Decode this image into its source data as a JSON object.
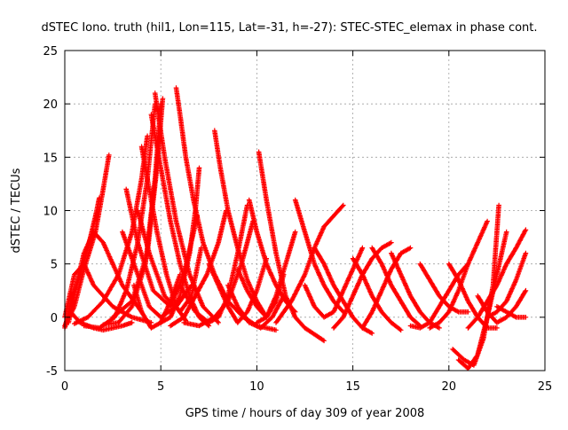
{
  "chart_data": {
    "type": "scatter",
    "title": "dSTEC Iono. truth (hil1, Lon=115, Lat=-31, h=-27): STEC-STEC_elemax in phase cont.",
    "xlabel": "GPS time / hours of day 309 of year 2008",
    "ylabel": "dSTEC  / TECUs",
    "xlim": [
      0,
      25
    ],
    "ylim": [
      -5,
      25
    ],
    "xticks": [
      0,
      5,
      10,
      15,
      20,
      25
    ],
    "yticks": [
      -5,
      0,
      5,
      10,
      15,
      20,
      25
    ],
    "grid": true,
    "marker": "+",
    "color": "#ff0000",
    "arcs": [
      {
        "x": [
          0.0,
          0.4,
          0.8,
          1.2,
          1.6,
          1.8
        ],
        "y": [
          -1.0,
          2.0,
          4.0,
          6.5,
          9.5,
          11.2
        ]
      },
      {
        "x": [
          0.0,
          0.5,
          1.0,
          1.5,
          2.5,
          3.5,
          4.5
        ],
        "y": [
          0.0,
          4.0,
          5.0,
          3.0,
          1.0,
          0.0,
          -0.5
        ]
      },
      {
        "x": [
          0.0,
          0.5,
          1.0,
          1.6,
          2.0,
          2.3
        ],
        "y": [
          -0.8,
          1.0,
          4.5,
          8.0,
          12.0,
          15.2
        ]
      },
      {
        "x": [
          0.2,
          0.6,
          1.0,
          1.5,
          2.0,
          3.0,
          4.0
        ],
        "y": [
          -0.5,
          3.0,
          6.0,
          8.0,
          7.0,
          3.0,
          0.5
        ]
      },
      {
        "x": [
          0.3,
          0.8,
          1.5,
          2.0,
          2.5,
          3.0,
          3.5
        ],
        "y": [
          0.5,
          -0.5,
          -1.0,
          -1.2,
          -1.0,
          -0.8,
          -0.5
        ]
      },
      {
        "x": [
          0.5,
          1.2,
          2.0,
          2.8,
          3.5,
          4.0,
          4.3
        ],
        "y": [
          -0.6,
          0.0,
          1.5,
          4.0,
          8.0,
          13.0,
          17.0
        ]
      },
      {
        "x": [
          1.0,
          1.8,
          2.6,
          3.2,
          3.8,
          4.3,
          4.7
        ],
        "y": [
          -0.8,
          -1.0,
          0.0,
          2.5,
          7.0,
          13.0,
          20.0
        ]
      },
      {
        "x": [
          2.0,
          2.8,
          3.5,
          4.2,
          4.7,
          5.0
        ],
        "y": [
          -0.7,
          -0.5,
          1.0,
          5.0,
          13.0,
          20.0
        ]
      },
      {
        "x": [
          2.5,
          3.5,
          4.3,
          4.8,
          5.1
        ],
        "y": [
          0.0,
          1.5,
          6.0,
          14.0,
          20.5
        ]
      },
      {
        "x": [
          4.0,
          4.4,
          4.8,
          5.3,
          5.8,
          6.3
        ],
        "y": [
          16.0,
          12.0,
          8.0,
          4.0,
          1.0,
          -0.3
        ]
      },
      {
        "x": [
          4.5,
          5.0,
          5.5,
          6.0,
          6.5,
          7.0,
          7.5
        ],
        "y": [
          19.0,
          14.0,
          9.0,
          5.0,
          2.0,
          0.0,
          -0.8
        ]
      },
      {
        "x": [
          4.7,
          5.2,
          5.8,
          6.5,
          7.2,
          8.0
        ],
        "y": [
          21.0,
          15.0,
          9.0,
          4.0,
          1.0,
          -0.5
        ]
      },
      {
        "x": [
          3.6,
          4.0,
          4.5,
          5.0,
          5.5,
          6.0
        ],
        "y": [
          3.0,
          0.5,
          -1.0,
          -0.5,
          1.5,
          4.0
        ]
      },
      {
        "x": [
          3.0,
          3.8,
          4.4,
          5.0,
          5.8,
          6.6
        ],
        "y": [
          8.0,
          4.0,
          1.0,
          0.0,
          1.0,
          3.0
        ]
      },
      {
        "x": [
          3.8,
          4.4,
          5.2,
          6.0,
          6.6,
          7.1
        ],
        "y": [
          10.0,
          6.0,
          2.0,
          0.5,
          2.0,
          6.5
        ]
      },
      {
        "x": [
          3.2,
          3.8,
          4.6,
          5.5,
          6.2,
          6.9
        ],
        "y": [
          12.0,
          7.0,
          2.5,
          1.0,
          4.0,
          9.5
        ]
      },
      {
        "x": [
          5.0,
          5.5,
          6.0,
          6.5,
          6.8,
          7.0
        ],
        "y": [
          -0.5,
          0.0,
          2.0,
          6.0,
          10.0,
          14.0
        ]
      },
      {
        "x": [
          5.5,
          6.2,
          6.8,
          7.4,
          8.0,
          8.4
        ],
        "y": [
          -0.8,
          0.0,
          2.0,
          4.0,
          7.0,
          10.0
        ]
      },
      {
        "x": [
          5.8,
          6.0,
          6.3,
          6.7,
          7.2,
          7.8,
          8.5,
          9.3,
          10.0,
          11.0
        ],
        "y": [
          21.5,
          19.0,
          15.0,
          11.0,
          7.0,
          4.0,
          1.5,
          0.0,
          -0.8,
          -1.2
        ]
      },
      {
        "x": [
          6.0,
          6.8,
          7.5,
          8.0,
          8.5,
          9.0,
          9.5
        ],
        "y": [
          3.0,
          0.5,
          -0.5,
          0.0,
          2.0,
          6.0,
          10.5
        ]
      },
      {
        "x": [
          6.2,
          7.0,
          7.8,
          8.5,
          9.2,
          9.8
        ],
        "y": [
          -0.5,
          -0.8,
          0.0,
          1.5,
          5.0,
          9.0
        ]
      },
      {
        "x": [
          7.8,
          8.1,
          8.5,
          9.0,
          9.5,
          10.0,
          10.5
        ],
        "y": [
          17.5,
          14.0,
          10.0,
          6.5,
          3.5,
          1.5,
          0.0
        ]
      },
      {
        "x": [
          7.5,
          8.0,
          8.5,
          9.0,
          9.5,
          10.0,
          10.5
        ],
        "y": [
          5.0,
          3.0,
          1.0,
          -0.5,
          0.5,
          2.5,
          5.5
        ]
      },
      {
        "x": [
          8.5,
          9.0,
          9.6,
          10.2,
          10.8,
          11.4
        ],
        "y": [
          3.0,
          1.0,
          -0.5,
          -1.0,
          0.0,
          2.0
        ]
      },
      {
        "x": [
          9.0,
          9.5,
          10.0,
          10.5,
          11.0,
          11.4
        ],
        "y": [
          4.5,
          2.5,
          1.0,
          0.0,
          1.5,
          4.0
        ]
      },
      {
        "x": [
          9.6,
          10.0,
          10.5,
          11.0,
          11.5,
          12.0
        ],
        "y": [
          11.0,
          8.0,
          5.0,
          3.0,
          1.5,
          0.5
        ]
      },
      {
        "x": [
          10.1,
          10.5,
          11.0,
          11.5,
          12.0,
          12.5,
          13.5
        ],
        "y": [
          15.5,
          11.0,
          6.0,
          2.0,
          0.0,
          -1.0,
          -2.2
        ]
      },
      {
        "x": [
          10.0,
          10.5,
          11.0,
          11.5,
          12.0
        ],
        "y": [
          -0.5,
          0.0,
          2.0,
          5.0,
          8.0
        ]
      },
      {
        "x": [
          11.0,
          11.8,
          12.5,
          13.0,
          13.5,
          14.0,
          14.5
        ],
        "y": [
          -0.5,
          1.5,
          4.0,
          6.5,
          8.5,
          9.5,
          10.5
        ]
      },
      {
        "x": [
          12.0,
          12.5,
          13.0,
          13.5,
          14.0,
          14.5
        ],
        "y": [
          11.0,
          8.0,
          5.0,
          3.0,
          1.5,
          0.5
        ]
      },
      {
        "x": [
          12.5,
          13.0,
          13.5,
          14.0,
          14.5,
          15.0,
          15.5
        ],
        "y": [
          3.0,
          1.0,
          0.0,
          0.5,
          2.5,
          4.5,
          6.5
        ]
      },
      {
        "x": [
          13.0,
          13.5,
          14.0,
          14.5,
          15.0,
          15.5,
          16.0
        ],
        "y": [
          6.5,
          5.0,
          3.0,
          1.5,
          0.0,
          -1.0,
          -1.5
        ]
      },
      {
        "x": [
          14.0,
          14.5,
          15.0,
          15.5,
          16.0,
          16.5,
          17.0
        ],
        "y": [
          -1.0,
          0.0,
          2.0,
          4.0,
          5.5,
          6.5,
          7.0
        ]
      },
      {
        "x": [
          15.0,
          15.5,
          16.0,
          16.5,
          17.0,
          17.5
        ],
        "y": [
          5.5,
          4.0,
          2.0,
          0.5,
          -0.5,
          -1.2
        ]
      },
      {
        "x": [
          15.5,
          16.0,
          16.5,
          17.0,
          17.5,
          18.0
        ],
        "y": [
          -1.0,
          0.5,
          2.5,
          4.5,
          6.0,
          6.5
        ]
      },
      {
        "x": [
          16.0,
          16.5,
          17.0,
          17.5,
          18.0,
          18.5
        ],
        "y": [
          6.5,
          5.0,
          3.0,
          1.5,
          0.0,
          -0.8
        ]
      },
      {
        "x": [
          17.0,
          17.5,
          18.0,
          18.5,
          19.0,
          19.5
        ],
        "y": [
          6.0,
          4.0,
          2.0,
          0.5,
          -0.5,
          -1.0
        ]
      },
      {
        "x": [
          18.5,
          19.0,
          19.5,
          20.0,
          20.5,
          21.0
        ],
        "y": [
          5.0,
          3.5,
          2.0,
          1.0,
          0.5,
          0.5
        ]
      },
      {
        "x": [
          18.0,
          18.5,
          19.0,
          19.5,
          20.0,
          20.5,
          21.0
        ],
        "y": [
          -0.8,
          -1.0,
          -0.5,
          1.0,
          2.5,
          4.0,
          5.0
        ]
      },
      {
        "x": [
          19.0,
          19.5,
          20.0,
          20.5,
          21.0,
          21.5,
          22.0
        ],
        "y": [
          -1.0,
          -0.5,
          0.5,
          2.5,
          5.0,
          7.0,
          9.0
        ]
      },
      {
        "x": [
          20.0,
          20.5,
          21.0,
          21.5,
          22.0,
          22.5
        ],
        "y": [
          5.0,
          3.5,
          1.5,
          0.0,
          -1.0,
          -1.0
        ]
      },
      {
        "x": [
          20.2,
          20.8,
          21.3,
          21.8,
          22.3,
          22.6
        ],
        "y": [
          -3.0,
          -4.0,
          -4.5,
          -2.0,
          3.0,
          10.5
        ]
      },
      {
        "x": [
          20.5,
          21.0,
          21.5,
          22.0,
          22.5,
          23.0
        ],
        "y": [
          -4.0,
          -4.8,
          -3.5,
          0.0,
          4.0,
          8.0
        ]
      },
      {
        "x": [
          21.0,
          21.5,
          22.0,
          22.5,
          23.0,
          23.5,
          24.0
        ],
        "y": [
          -1.0,
          0.0,
          1.5,
          3.0,
          5.0,
          6.5,
          8.2
        ]
      },
      {
        "x": [
          21.5,
          22.0,
          22.5,
          23.0,
          23.5,
          24.0
        ],
        "y": [
          2.0,
          0.5,
          -0.5,
          0.0,
          1.0,
          2.5
        ]
      },
      {
        "x": [
          22.0,
          22.5,
          23.0,
          23.5,
          24.0
        ],
        "y": [
          0.0,
          0.5,
          1.5,
          3.5,
          6.0
        ]
      },
      {
        "x": [
          22.5,
          23.0,
          23.5,
          24.0
        ],
        "y": [
          1.0,
          0.5,
          0.0,
          0.0
        ]
      }
    ]
  }
}
